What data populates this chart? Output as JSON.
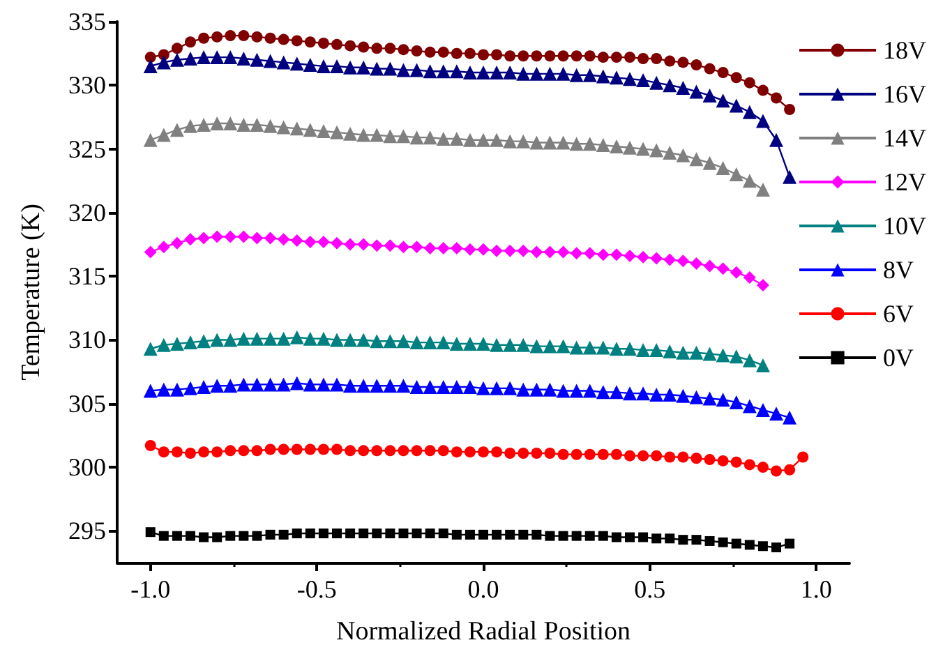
{
  "chart_data": {
    "type": "line",
    "xlabel": "Normalized Radial Position",
    "ylabel": "Temperature (K)",
    "x": [
      -1.0,
      -0.96,
      -0.92,
      -0.88,
      -0.84,
      -0.8,
      -0.76,
      -0.72,
      -0.68,
      -0.64,
      -0.6,
      -0.56,
      -0.52,
      -0.48,
      -0.44,
      -0.4,
      -0.36,
      -0.32,
      -0.28,
      -0.24,
      -0.2,
      -0.16,
      -0.12,
      -0.08,
      -0.04,
      0.0,
      0.04,
      0.08,
      0.12,
      0.16,
      0.2,
      0.24,
      0.28,
      0.32,
      0.36,
      0.4,
      0.44,
      0.48,
      0.52,
      0.56,
      0.6,
      0.64,
      0.68,
      0.72,
      0.76,
      0.8,
      0.84,
      0.88,
      0.92,
      0.96
    ],
    "xlim": [
      -1.1,
      1.1
    ],
    "xticks": [
      {
        "value": -1,
        "label": "-1.0"
      },
      {
        "value": -0.5,
        "label": "-0.5"
      },
      {
        "value": 0,
        "label": "0.0"
      },
      {
        "value": 0.5,
        "label": "0.5"
      },
      {
        "value": 1,
        "label": "1.0"
      }
    ],
    "ylim": [
      292.5,
      335
    ],
    "yticks": [
      295,
      300,
      305,
      310,
      315,
      320,
      325,
      330,
      335
    ],
    "grid": false,
    "legend": "right",
    "line_style": "solid",
    "series": [
      {
        "name": "18V",
        "color": "#800000",
        "marker": "circle",
        "values": [
          332.2,
          332.4,
          332.9,
          333.4,
          333.7,
          333.8,
          333.9,
          333.9,
          333.8,
          333.7,
          333.6,
          333.5,
          333.4,
          333.3,
          333.2,
          333.1,
          333.0,
          332.9,
          332.9,
          332.8,
          332.7,
          332.6,
          332.6,
          332.5,
          332.5,
          332.4,
          332.4,
          332.3,
          332.3,
          332.3,
          332.3,
          332.3,
          332.3,
          332.3,
          332.2,
          332.2,
          332.2,
          332.1,
          332.1,
          331.9,
          331.8,
          331.6,
          331.3,
          331.0,
          330.6,
          330.2,
          329.6,
          329.0,
          328.1,
          null
        ]
      },
      {
        "name": "16V",
        "color": "#000080",
        "marker": "triangle",
        "values": [
          331.5,
          331.8,
          332.0,
          332.1,
          332.2,
          332.2,
          332.2,
          332.1,
          332.0,
          331.9,
          331.8,
          331.7,
          331.6,
          331.5,
          331.5,
          331.4,
          331.4,
          331.3,
          331.3,
          331.2,
          331.2,
          331.1,
          331.1,
          331.1,
          331.0,
          331.0,
          331.0,
          331.0,
          330.9,
          330.9,
          330.9,
          330.9,
          330.8,
          330.8,
          330.7,
          330.6,
          330.5,
          330.4,
          330.2,
          330.0,
          329.8,
          329.5,
          329.2,
          328.8,
          328.4,
          327.9,
          327.2,
          325.7,
          322.8,
          null
        ]
      },
      {
        "name": "14V",
        "color": "#808080",
        "marker": "triangle",
        "values": [
          325.7,
          326.1,
          326.5,
          326.8,
          326.9,
          327.0,
          327.0,
          326.9,
          326.9,
          326.8,
          326.7,
          326.6,
          326.5,
          326.4,
          326.3,
          326.2,
          326.1,
          326.1,
          326.0,
          326.0,
          325.9,
          325.9,
          325.8,
          325.8,
          325.7,
          325.7,
          325.7,
          325.6,
          325.6,
          325.5,
          325.5,
          325.5,
          325.4,
          325.4,
          325.3,
          325.2,
          325.1,
          325.0,
          324.9,
          324.7,
          324.5,
          324.2,
          323.9,
          323.5,
          323.0,
          322.5,
          321.8,
          null,
          null,
          null
        ]
      },
      {
        "name": "12V",
        "color": "#ff00ff",
        "marker": "diamond",
        "values": [
          316.9,
          317.3,
          317.6,
          317.9,
          318.0,
          318.1,
          318.1,
          318.1,
          318.0,
          318.0,
          317.9,
          317.8,
          317.7,
          317.7,
          317.6,
          317.5,
          317.5,
          317.4,
          317.4,
          317.3,
          317.3,
          317.2,
          317.2,
          317.2,
          317.1,
          317.1,
          317.0,
          317.0,
          317.0,
          316.9,
          316.9,
          316.9,
          316.8,
          316.8,
          316.7,
          316.7,
          316.6,
          316.5,
          316.4,
          316.3,
          316.2,
          316.0,
          315.8,
          315.6,
          315.3,
          314.9,
          314.3,
          null,
          null,
          null
        ]
      },
      {
        "name": "10V",
        "color": "#008080",
        "marker": "triangle",
        "values": [
          309.3,
          309.6,
          309.7,
          309.8,
          309.9,
          310.0,
          310.0,
          310.1,
          310.1,
          310.1,
          310.1,
          310.2,
          310.1,
          310.1,
          310.0,
          310.0,
          310.0,
          309.9,
          309.9,
          309.9,
          309.8,
          309.8,
          309.8,
          309.7,
          309.7,
          309.7,
          309.6,
          309.6,
          309.6,
          309.5,
          309.5,
          309.5,
          309.4,
          309.4,
          309.4,
          309.3,
          309.3,
          309.2,
          309.2,
          309.1,
          309.0,
          309.0,
          308.9,
          308.8,
          308.7,
          308.4,
          308.0,
          null,
          null,
          null
        ]
      },
      {
        "name": "8V",
        "color": "#0000ff",
        "marker": "triangle",
        "values": [
          306.0,
          306.1,
          306.1,
          306.2,
          306.3,
          306.4,
          306.4,
          306.5,
          306.5,
          306.5,
          306.5,
          306.6,
          306.5,
          306.5,
          306.5,
          306.4,
          306.4,
          306.4,
          306.4,
          306.4,
          306.3,
          306.3,
          306.3,
          306.3,
          306.3,
          306.2,
          306.2,
          306.2,
          306.1,
          306.1,
          306.1,
          306.0,
          306.0,
          306.0,
          305.9,
          305.9,
          305.8,
          305.8,
          305.7,
          305.7,
          305.6,
          305.5,
          305.4,
          305.3,
          305.1,
          304.8,
          304.5,
          304.2,
          303.9,
          null
        ]
      },
      {
        "name": "6V",
        "color": "#ff0000",
        "marker": "circle",
        "values": [
          301.7,
          301.2,
          301.2,
          301.1,
          301.2,
          301.2,
          301.3,
          301.3,
          301.3,
          301.4,
          301.4,
          301.4,
          301.4,
          301.4,
          301.4,
          301.3,
          301.3,
          301.3,
          301.3,
          301.3,
          301.3,
          301.3,
          301.3,
          301.2,
          301.2,
          301.2,
          301.2,
          301.1,
          301.1,
          301.1,
          301.1,
          301.0,
          301.0,
          301.0,
          301.0,
          301.0,
          300.9,
          300.9,
          300.9,
          300.8,
          300.8,
          300.7,
          300.6,
          300.5,
          300.4,
          300.2,
          300.0,
          299.7,
          299.8,
          300.8
        ]
      },
      {
        "name": "0V",
        "color": "#000000",
        "marker": "square",
        "values": [
          294.9,
          294.6,
          294.6,
          294.6,
          294.5,
          294.5,
          294.6,
          294.6,
          294.6,
          294.7,
          294.7,
          294.8,
          294.8,
          294.8,
          294.8,
          294.8,
          294.8,
          294.8,
          294.8,
          294.8,
          294.8,
          294.8,
          294.8,
          294.7,
          294.7,
          294.7,
          294.7,
          294.7,
          294.7,
          294.7,
          294.6,
          294.6,
          294.6,
          294.6,
          294.6,
          294.5,
          294.5,
          294.5,
          294.4,
          294.4,
          294.3,
          294.3,
          294.2,
          294.1,
          294.0,
          293.9,
          293.8,
          293.7,
          294.0,
          null
        ]
      }
    ]
  }
}
